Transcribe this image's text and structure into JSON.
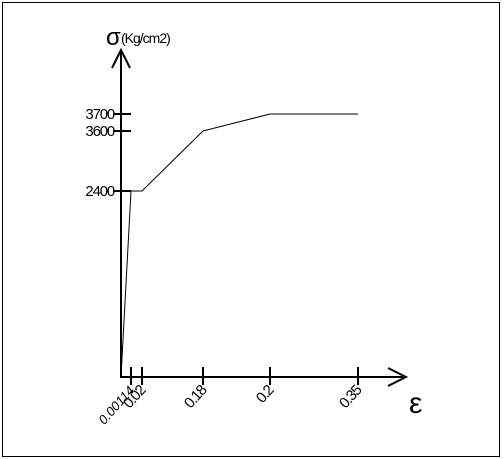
{
  "chart_data": {
    "type": "line",
    "title": "",
    "ylabel_symbol": "σ",
    "ylabel_unit": "(Kg/cm2)",
    "xlabel_symbol": "ε",
    "x_ticks": [
      {
        "value": 0.00114,
        "label": "0.00114",
        "italic": true
      },
      {
        "value": 0.02,
        "label": "0.02"
      },
      {
        "value": 0.18,
        "label": "0.18"
      },
      {
        "value": 0.2,
        "label": "0.2"
      },
      {
        "value": 0.35,
        "label": "0.35"
      }
    ],
    "y_ticks": [
      {
        "value": 2400,
        "label": "2400"
      },
      {
        "value": 3600,
        "label": "3600"
      },
      {
        "value": 3700,
        "label": "3700"
      }
    ],
    "series": [
      {
        "points": [
          {
            "x": 0,
            "y": 0
          },
          {
            "x": 0.00114,
            "y": 2400
          },
          {
            "x": 0.02,
            "y": 2400
          },
          {
            "x": 0.18,
            "y": 3600
          },
          {
            "x": 0.2,
            "y": 3700
          },
          {
            "x": 0.35,
            "y": 3700
          }
        ]
      }
    ],
    "grid": false,
    "legend": "none"
  }
}
